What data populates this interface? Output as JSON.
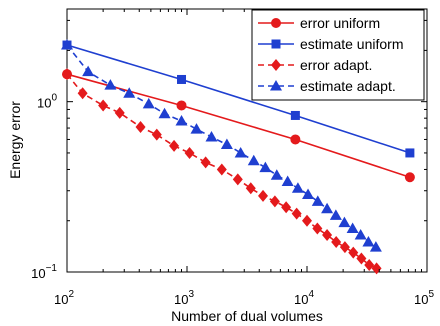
{
  "chart_data": {
    "type": "line",
    "xlabel": "Number of dual volumes",
    "ylabel": "Energy error",
    "xscale": "log",
    "yscale": "log",
    "xlim": [
      100,
      100000
    ],
    "ylim": [
      0.1,
      3.5
    ],
    "grid": false,
    "legend_position": "top-right",
    "x_ticks": [
      {
        "value": 100,
        "base": "10",
        "exp": "2"
      },
      {
        "value": 1000,
        "base": "10",
        "exp": "3"
      },
      {
        "value": 10000,
        "base": "10",
        "exp": "4"
      },
      {
        "value": 100000,
        "base": "10",
        "exp": "5"
      }
    ],
    "y_ticks": [
      {
        "value": 0.1,
        "base": "10",
        "exp": "−1"
      },
      {
        "value": 1,
        "base": "10",
        "exp": "0"
      }
    ],
    "series": [
      {
        "name": "error uniform",
        "color": "#e41a1c",
        "dash": "solid",
        "marker": "circle",
        "x": [
          100,
          900,
          8000,
          72000
        ],
        "y": [
          1.45,
          0.95,
          0.6,
          0.36
        ]
      },
      {
        "name": "estimate uniform",
        "color": "#1f3fd0",
        "dash": "solid",
        "marker": "square",
        "x": [
          100,
          900,
          8000,
          72000
        ],
        "y": [
          2.15,
          1.35,
          0.83,
          0.5
        ]
      },
      {
        "name": "error adapt.",
        "color": "#e41a1c",
        "dash": "dashed",
        "marker": "diamond",
        "x": [
          100,
          135,
          200,
          275,
          410,
          560,
          780,
          1050,
          1430,
          1950,
          2650,
          3400,
          4300,
          5400,
          6700,
          8200,
          10000,
          12200,
          14700,
          17500,
          20700,
          24300,
          28400,
          33000,
          38000
        ],
        "y": [
          1.45,
          1.12,
          0.95,
          0.86,
          0.71,
          0.64,
          0.55,
          0.5,
          0.44,
          0.4,
          0.35,
          0.31,
          0.28,
          0.26,
          0.24,
          0.22,
          0.2,
          0.18,
          0.165,
          0.15,
          0.14,
          0.13,
          0.12,
          0.11,
          0.105
        ]
      },
      {
        "name": "estimate adapt.",
        "color": "#1f3fd0",
        "dash": "dashed",
        "marker": "triangle",
        "x": [
          100,
          150,
          230,
          330,
          480,
          650,
          900,
          1200,
          1600,
          2150,
          2800,
          3600,
          4500,
          5600,
          6900,
          8400,
          10200,
          12300,
          14700,
          17400,
          20500,
          24000,
          28000,
          32500,
          37500
        ],
        "y": [
          2.15,
          1.5,
          1.25,
          1.12,
          0.97,
          0.85,
          0.77,
          0.69,
          0.62,
          0.56,
          0.5,
          0.45,
          0.41,
          0.37,
          0.34,
          0.31,
          0.285,
          0.26,
          0.235,
          0.215,
          0.195,
          0.18,
          0.165,
          0.15,
          0.14
        ]
      }
    ]
  }
}
